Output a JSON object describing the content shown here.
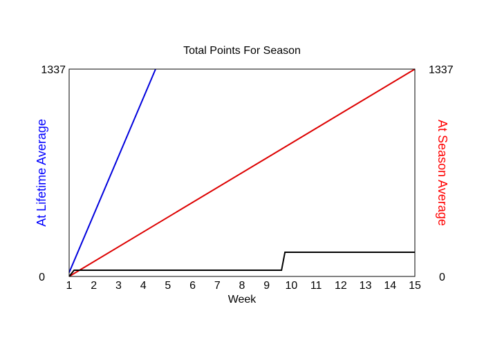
{
  "chart_data": {
    "type": "line",
    "title": "Total Points For Season",
    "xlabel": "Week",
    "ylabel_left": "At Lifetime Average",
    "ylabel_right": "At Season Average",
    "xlim": [
      1,
      15
    ],
    "ylim": [
      0,
      1337
    ],
    "x_ticks": [
      1,
      2,
      3,
      4,
      5,
      6,
      7,
      8,
      9,
      10,
      11,
      12,
      13,
      14,
      15
    ],
    "y_ticks_left": [
      "0",
      "1337"
    ],
    "y_ticks_right": [
      "0",
      "1337"
    ],
    "grid": false,
    "colors": {
      "left_axis_label": "#0000ff",
      "right_axis_label": "#ff0000"
    },
    "series": [
      {
        "color": "#0000dd",
        "points": [
          [
            1,
            25
          ],
          [
            4.5,
            1337
          ]
        ]
      },
      {
        "color": "#dd0000",
        "points": [
          [
            1,
            0
          ],
          [
            15,
            1337
          ]
        ]
      },
      {
        "color": "#000000",
        "points": [
          [
            1,
            0
          ],
          [
            1.2,
            40
          ],
          [
            9.6,
            40
          ],
          [
            9.74,
            156
          ],
          [
            15,
            156
          ]
        ]
      }
    ]
  }
}
